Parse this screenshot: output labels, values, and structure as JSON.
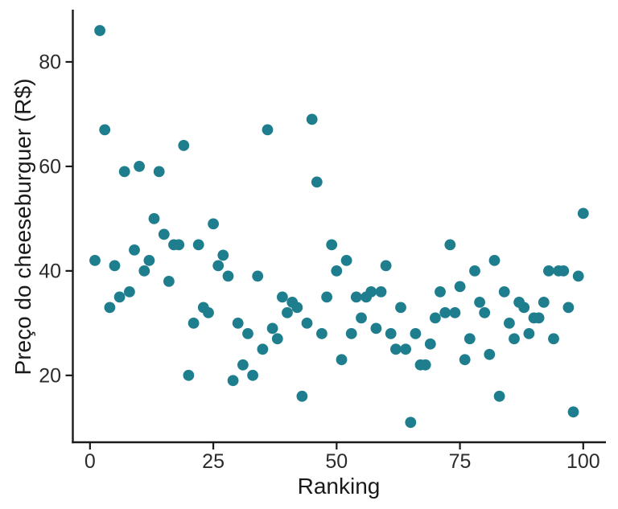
{
  "chart_data": {
    "type": "scatter",
    "title": "",
    "xlabel": "Ranking",
    "ylabel": "Preço do cheeseburguer (R$)",
    "x_ticks": [
      0,
      25,
      50,
      75,
      100
    ],
    "y_ticks": [
      20,
      40,
      60,
      80
    ],
    "xlim": [
      -3.4,
      104.6
    ],
    "ylim": [
      7.2,
      90
    ],
    "grid": false,
    "legend_position": "none",
    "point_color": "#1f7e8e",
    "axis_color": "#1a1a1a",
    "tick_label_color": "#2b2b2b",
    "background_color": "#ffffff",
    "point_radius": 6.9,
    "points": [
      [
        1,
        42
      ],
      [
        2,
        86
      ],
      [
        3,
        67
      ],
      [
        4,
        33
      ],
      [
        5,
        41
      ],
      [
        6,
        35
      ],
      [
        7,
        59
      ],
      [
        8,
        36
      ],
      [
        9,
        44
      ],
      [
        10,
        60
      ],
      [
        11,
        40
      ],
      [
        12,
        42
      ],
      [
        13,
        50
      ],
      [
        14,
        59
      ],
      [
        15,
        47
      ],
      [
        16,
        38
      ],
      [
        17,
        45
      ],
      [
        18,
        45
      ],
      [
        19,
        64
      ],
      [
        20,
        20
      ],
      [
        21,
        30
      ],
      [
        22,
        45
      ],
      [
        23,
        33
      ],
      [
        24,
        32
      ],
      [
        25,
        49
      ],
      [
        26,
        41
      ],
      [
        27,
        43
      ],
      [
        28,
        39
      ],
      [
        29,
        19
      ],
      [
        30,
        30
      ],
      [
        31,
        22
      ],
      [
        32,
        28
      ],
      [
        33,
        20
      ],
      [
        34,
        39
      ],
      [
        35,
        25
      ],
      [
        36,
        67
      ],
      [
        37,
        29
      ],
      [
        38,
        27
      ],
      [
        39,
        35
      ],
      [
        40,
        32
      ],
      [
        41,
        34
      ],
      [
        42,
        33
      ],
      [
        43,
        16
      ],
      [
        44,
        30
      ],
      [
        45,
        69
      ],
      [
        46,
        57
      ],
      [
        47,
        28
      ],
      [
        48,
        35
      ],
      [
        49,
        45
      ],
      [
        50,
        40
      ],
      [
        51,
        23
      ],
      [
        52,
        42
      ],
      [
        53,
        28
      ],
      [
        54,
        35
      ],
      [
        55,
        31
      ],
      [
        56,
        35
      ],
      [
        57,
        36
      ],
      [
        58,
        29
      ],
      [
        59,
        36
      ],
      [
        60,
        41
      ],
      [
        61,
        28
      ],
      [
        62,
        25
      ],
      [
        63,
        33
      ],
      [
        64,
        25
      ],
      [
        65,
        11
      ],
      [
        66,
        28
      ],
      [
        67,
        22
      ],
      [
        68,
        22
      ],
      [
        69,
        26
      ],
      [
        70,
        31
      ],
      [
        71,
        36
      ],
      [
        72,
        32
      ],
      [
        73,
        45
      ],
      [
        74,
        32
      ],
      [
        75,
        37
      ],
      [
        76,
        23
      ],
      [
        77,
        27
      ],
      [
        78,
        40
      ],
      [
        79,
        34
      ],
      [
        80,
        32
      ],
      [
        81,
        24
      ],
      [
        82,
        42
      ],
      [
        83,
        16
      ],
      [
        84,
        36
      ],
      [
        85,
        30
      ],
      [
        86,
        27
      ],
      [
        87,
        34
      ],
      [
        88,
        33
      ],
      [
        89,
        28
      ],
      [
        90,
        31
      ],
      [
        91,
        31
      ],
      [
        92,
        34
      ],
      [
        93,
        40
      ],
      [
        94,
        27
      ],
      [
        95,
        40
      ],
      [
        96,
        40
      ],
      [
        97,
        33
      ],
      [
        98,
        13
      ],
      [
        99,
        39
      ],
      [
        100,
        51
      ]
    ]
  }
}
